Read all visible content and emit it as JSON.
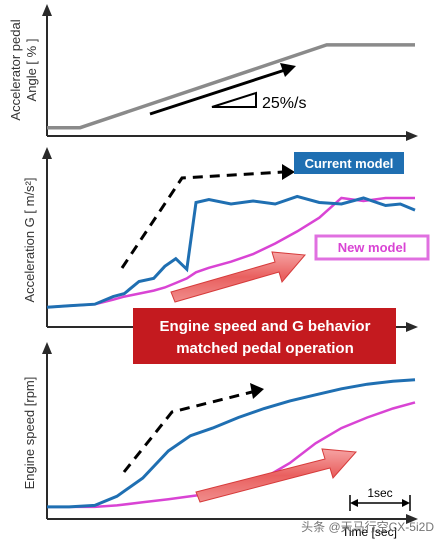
{
  "colors": {
    "current": "#1f6fb2",
    "new": "#d944d4",
    "pedal": "#8a8a8a",
    "axis": "#2a2a2a",
    "banner": "#c41a1f",
    "arrow_red": "#e54a4a",
    "new_label_border": "#e070e0"
  },
  "labels": {
    "pedal_ylabel_1": "Accelerator pedal",
    "pedal_ylabel_2": "Angle  [ % ]",
    "slope": "25%/s",
    "accel_ylabel": "Acceleration G [ m/s²]",
    "current_model": "Current model",
    "new_model": "New model",
    "banner_line1": "Engine speed and G behavior",
    "banner_line2": "matched pedal operation",
    "speed_ylabel": "Engine speed  [rpm]",
    "scale": "1sec",
    "xlabel": "Time [sec]",
    "watermark": "头条 @天马行空CX-5i2D"
  },
  "chart_data": [
    {
      "type": "line",
      "name": "pedal",
      "ylabel": "Accelerator pedal Angle [ % ]",
      "x": [
        0,
        0.9,
        7.6,
        10
      ],
      "series": [
        {
          "values": [
            0,
            0,
            100,
            100
          ]
        }
      ],
      "xlim": [
        0,
        10
      ],
      "ylim": [
        -10,
        130
      ],
      "annotation": "25%/s"
    },
    {
      "type": "line",
      "name": "acceleration",
      "ylabel": "Acceleration G [ m/s²]",
      "x": [
        0,
        0.6,
        1.3,
        1.8,
        2.1,
        2.5,
        2.9,
        3.2,
        3.5,
        3.8,
        4.05,
        4.4,
        5.0,
        5.6,
        6.2,
        6.8,
        7.4,
        8.0,
        8.6,
        9.2,
        9.6,
        10
      ],
      "series": [
        {
          "name": "Current model",
          "values": [
            0.03,
            0.04,
            0.05,
            0.1,
            0.12,
            0.2,
            0.22,
            0.3,
            0.35,
            0.28,
            0.72,
            0.74,
            0.71,
            0.73,
            0.71,
            0.76,
            0.72,
            0.71,
            0.75,
            0.7,
            0.71,
            0.67
          ]
        },
        {
          "name": "New model",
          "values": [
            0.03,
            0.04,
            0.05,
            0.08,
            0.1,
            0.12,
            0.14,
            0.16,
            0.19,
            0.22,
            0.26,
            0.29,
            0.33,
            0.38,
            0.45,
            0.53,
            0.62,
            0.75,
            0.73,
            0.75,
            0.75,
            0.75
          ]
        }
      ],
      "xlim": [
        0,
        10
      ],
      "ylim": [
        -0.1,
        1.0
      ]
    },
    {
      "type": "line",
      "name": "engine_speed",
      "ylabel": "Engine speed [rpm]",
      "x": [
        0,
        0.6,
        1.3,
        1.9,
        2.6,
        3.3,
        3.9,
        4.5,
        5.2,
        5.9,
        6.6,
        7.3,
        8.0,
        8.7,
        9.4,
        10
      ],
      "series": [
        {
          "values": [
            0.03,
            0.03,
            0.04,
            0.1,
            0.22,
            0.4,
            0.5,
            0.55,
            0.62,
            0.68,
            0.73,
            0.77,
            0.81,
            0.84,
            0.86,
            0.87
          ]
        },
        {
          "values": [
            0.03,
            0.03,
            0.03,
            0.04,
            0.06,
            0.08,
            0.1,
            0.12,
            0.16,
            0.22,
            0.32,
            0.45,
            0.55,
            0.62,
            0.68,
            0.72
          ]
        }
      ],
      "xlim": [
        0,
        10
      ],
      "ylim": [
        -0.05,
        1.0
      ]
    }
  ]
}
